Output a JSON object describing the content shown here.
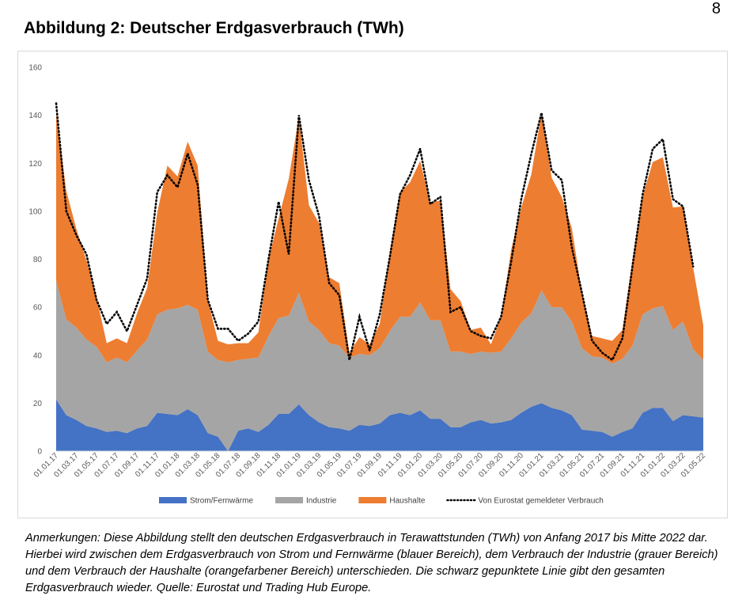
{
  "page_number": "8",
  "title": "Abbildung 2: Deutscher Erdgasverbrauch (TWh)",
  "notes": "Anmerkungen: Diese Abbildung stellt den deutschen Erdgasverbrauch in Terawattstunden (TWh) von Anfang 2017 bis Mitte 2022 dar. Hierbei wird zwischen dem Erdgasverbrauch von Strom und Fernwärme (blauer Bereich), dem Verbrauch der Industrie (grauer Bereich) und dem Verbrauch der Haushalte (orangefarbener Bereich) unterschieden. Die schwarz gepunktete Linie gibt den gesamten Erdgasverbrauch wieder. Quelle: Eurostat und Trading Hub Europe.",
  "chart_data": {
    "type": "area",
    "stacked": true,
    "x_tick_labels": [
      "01.01.17",
      "01.03.17",
      "01.05.17",
      "01.07.17",
      "01.09.17",
      "01.11.17",
      "01.01.18",
      "01.03.18",
      "01.05.18",
      "01.07.18",
      "01.09.18",
      "01.11.18",
      "01.01.19",
      "01.03.19",
      "01.05.19",
      "01.07.19",
      "01.09.19",
      "01.11.19",
      "01.01.20",
      "01.03.20",
      "01.05.20",
      "01.07.20",
      "01.09.20",
      "01.11.20",
      "01.01.21",
      "01.03.21",
      "01.05.21",
      "01.07.21",
      "01.09.21",
      "01.11.21",
      "01.01.22",
      "01.03.22",
      "01.05.22"
    ],
    "y_ticks": [
      0,
      20,
      40,
      60,
      80,
      100,
      120,
      140,
      160
    ],
    "ylim": [
      0,
      160
    ],
    "grid": false,
    "legend_position": "bottom",
    "series": [
      {
        "name": "Strom/Fernwärme",
        "color": "#4472c4",
        "values": [
          21.5,
          15,
          13,
          10.5,
          9.5,
          8,
          8.5,
          7.5,
          9.5,
          10.5,
          16,
          15.5,
          15,
          17.5,
          15,
          7.5,
          6,
          0,
          8.5,
          9.5,
          8,
          11,
          15.5,
          15.5,
          19.5,
          15,
          12,
          10,
          9.5,
          8.5,
          11,
          10.5,
          11.5,
          15,
          16,
          15,
          17,
          13.5,
          13.5,
          10,
          10,
          12,
          13,
          11.5,
          12,
          13,
          16,
          18.5,
          20,
          18,
          17,
          15,
          9,
          8.5,
          8,
          6,
          8,
          9.5,
          16,
          18,
          18,
          12.5,
          15,
          14.5,
          14
        ]
      },
      {
        "name": "Industrie",
        "color": "#a5a5a5",
        "values": [
          49.5,
          40,
          38.5,
          36,
          34,
          29,
          30.5,
          29.5,
          32.5,
          36,
          41,
          43.5,
          44.5,
          43.5,
          44,
          34,
          32,
          37,
          29.5,
          29,
          31,
          37,
          40,
          41,
          46.5,
          39,
          38.5,
          35,
          34.5,
          30.5,
          29.5,
          29.5,
          31.5,
          35,
          40,
          41,
          45,
          41,
          41,
          31.5,
          31.5,
          28.5,
          28.5,
          29.5,
          29.5,
          34,
          37.5,
          39,
          47,
          42,
          43,
          39,
          34,
          31,
          31,
          30.5,
          30.5,
          34.5,
          41,
          41.5,
          42.5,
          38,
          39,
          28,
          24
        ]
      },
      {
        "name": "Haushalte",
        "color": "#ed7d31",
        "values": [
          70,
          53.5,
          41,
          33,
          20.5,
          8,
          8,
          8,
          15.5,
          21.5,
          42.5,
          60,
          55,
          68,
          60,
          21.5,
          8,
          7.5,
          7,
          6.5,
          10.5,
          32,
          41.5,
          57,
          73.5,
          48.5,
          44.5,
          27.5,
          26,
          2,
          7,
          4.5,
          10,
          33,
          52,
          56,
          59,
          49,
          50,
          26,
          21,
          10,
          10,
          3.5,
          14.5,
          37,
          48,
          58,
          74,
          54,
          46,
          39,
          23,
          8.5,
          8,
          9.5,
          12,
          36,
          49,
          61,
          62,
          51,
          48,
          34,
          14.5
        ]
      }
    ],
    "line": {
      "name": "Von Eurostat gemeldeter Verbrauch",
      "color": "#000000",
      "style": "dotted",
      "values": [
        145,
        100,
        90,
        82,
        63,
        53,
        58,
        50,
        61,
        72,
        108,
        115,
        110,
        124,
        111,
        63,
        51,
        51,
        46,
        49,
        54,
        80,
        104,
        82,
        140,
        113,
        98,
        70,
        65,
        38,
        56,
        42,
        57,
        81,
        107,
        115,
        126,
        103,
        106,
        58,
        60,
        50,
        48,
        47,
        56,
        79,
        105,
        124,
        141,
        117,
        113,
        85,
        66,
        46,
        41,
        38,
        47,
        77,
        107,
        126,
        130,
        105,
        102,
        77,
        null
      ]
    }
  }
}
